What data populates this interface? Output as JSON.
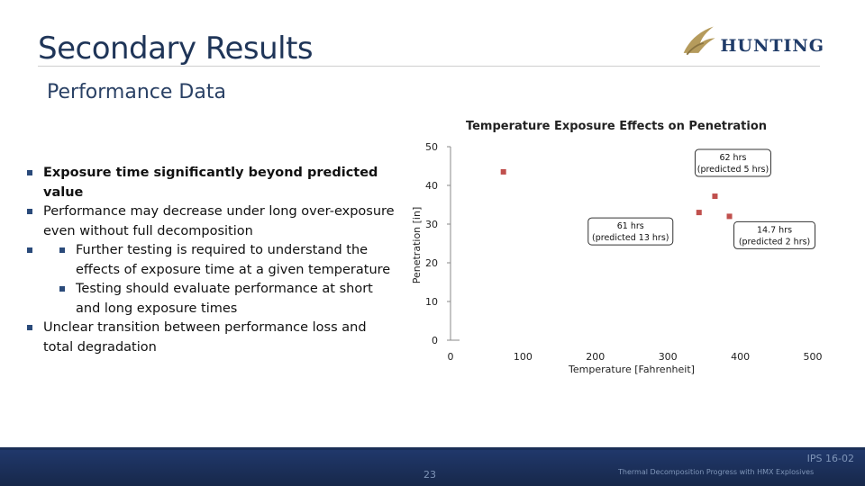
{
  "slide": {
    "title": "Secondary Results",
    "subtitle": "Performance Data",
    "logo_text": "HUNTING"
  },
  "bullets": [
    "Exposure time significantly beyond predicted value",
    "Performance may decrease under long over-exposure even without full decomposition",
    "Further testing is required to understand the effects of exposure time at a given temperature",
    "Testing should evaluate performance at short and long exposure times",
    "Unclear transition between performance loss and total degradation"
  ],
  "chart_data": {
    "type": "scatter",
    "title": "Temperature Exposure Effects on Penetration",
    "xlabel": "Temperature [Fahrenheit]",
    "ylabel": "Penetration [in]",
    "xlim": [
      0,
      500
    ],
    "ylim": [
      0,
      50
    ],
    "xticks": [
      "0",
      "100",
      "200",
      "300",
      "400",
      "500"
    ],
    "yticks": [
      "0",
      "10",
      "20",
      "30",
      "40",
      "50"
    ],
    "grid": false,
    "marker_color": "#c0504d",
    "points": [
      {
        "x": 73,
        "y": 43.5
      },
      {
        "x": 365,
        "y": 37.2
      },
      {
        "x": 343,
        "y": 33
      },
      {
        "x": 385,
        "y": 32
      }
    ],
    "annotations": [
      {
        "text": "62 hrs\n(predicted 5 hrs)",
        "x": 365,
        "y": 37.2
      },
      {
        "text": "61 hrs\n(predicted 13 hrs)",
        "x": 343,
        "y": 33
      },
      {
        "text": "14.7 hrs\n(predicted 2 hrs)",
        "x": 385,
        "y": 32
      }
    ]
  },
  "footer": {
    "code": "IPS 16-02",
    "page": "23",
    "text": "Thermal Decomposition Progress with HMX Explosives"
  }
}
